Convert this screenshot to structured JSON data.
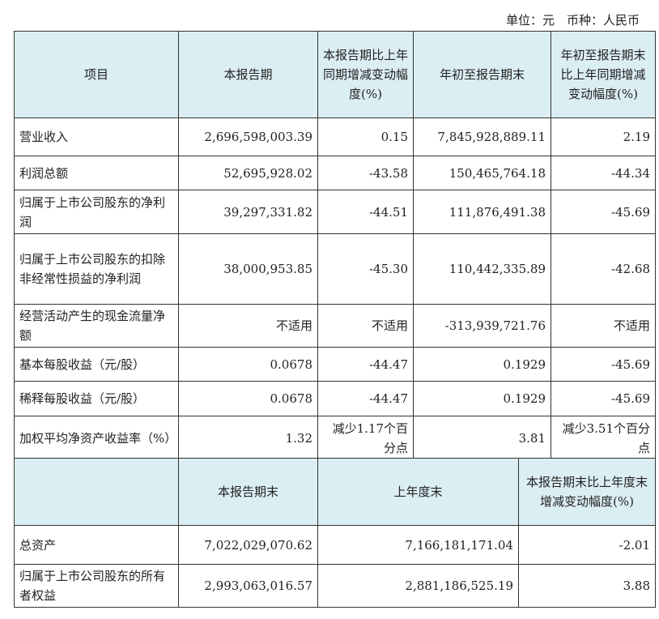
{
  "unit_note": "单位：元　币种：人民币",
  "table1": {
    "headers": [
      "项目",
      "本报告期",
      "本报告期比上年同期增减变动幅度(%)",
      "年初至报告期末",
      "年初至报告期末比上年同期增减变动幅度(%)"
    ],
    "rows": [
      [
        "营业收入",
        "2,696,598,003.39",
        "0.15",
        "7,845,928,889.11",
        "2.19"
      ],
      [
        "利润总额",
        "52,695,928.02",
        "-43.58",
        "150,465,764.18",
        "-44.34"
      ],
      [
        "归属于上市公司股东的净利润",
        "39,297,331.82",
        "-44.51",
        "111,876,491.38",
        "-45.69"
      ],
      [
        "归属于上市公司股东的扣除非经常性损益的净利润",
        "38,000,953.85",
        "-45.30",
        "110,442,335.89",
        "-42.68"
      ],
      [
        "经营活动产生的现金流量净额",
        "不适用",
        "不适用",
        "-313,939,721.76",
        "不适用"
      ],
      [
        "基本每股收益（元/股）",
        "0.0678",
        "-44.47",
        "0.1929",
        "-45.69"
      ],
      [
        "稀释每股收益（元/股）",
        "0.0678",
        "-44.47",
        "0.1929",
        "-45.69"
      ],
      [
        "加权平均净资产收益率（%）",
        "1.32",
        "减少1.17个百分点",
        "3.81",
        "减少3.51个百分点"
      ]
    ]
  },
  "table2": {
    "headers": [
      "",
      "本报告期末",
      "上年度末",
      "本报告期末比上年度末增减变动幅度(%)"
    ],
    "rows": [
      [
        "总资产",
        "7,022,029,070.62",
        "7,166,181,171.04",
        "-2.01"
      ],
      [
        "归属于上市公司股东的所有者权益",
        "2,993,063,016.57",
        "2,881,186,525.19",
        "3.88"
      ]
    ]
  }
}
